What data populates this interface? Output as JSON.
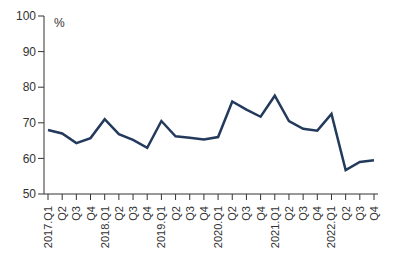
{
  "chart_data": {
    "type": "line",
    "y_label": "%",
    "categories": [
      "2017.Q1",
      "Q2",
      "Q3",
      "Q4",
      "2018.Q1",
      "Q2",
      "Q3",
      "Q4",
      "2019.Q1",
      "Q2",
      "Q3",
      "Q4",
      "2020.Q1",
      "Q2",
      "Q3",
      "Q4",
      "2021.Q1",
      "Q2",
      "Q3",
      "Q4",
      "2022.Q1",
      "Q2",
      "Q3",
      "Q4"
    ],
    "values": [
      68,
      67,
      64.3,
      65.7,
      71,
      66.8,
      65.2,
      63,
      70.5,
      66.2,
      65.8,
      65.3,
      66,
      76,
      73.7,
      71.7,
      77.6,
      70.5,
      68.3,
      67.8,
      72.5,
      56.7,
      59,
      59.5
    ],
    "color": "#233a5c",
    "ylim": [
      50,
      100
    ],
    "yticks": [
      50,
      60,
      70,
      80,
      90,
      100
    ],
    "grid": false
  }
}
